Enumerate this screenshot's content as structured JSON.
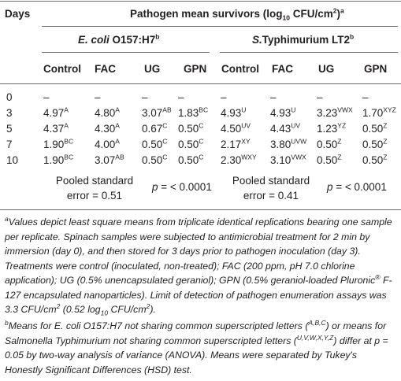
{
  "header": {
    "days": "Days",
    "title": [
      "Pathogen mean survivors (log",
      "10",
      " CFU/cm",
      "2",
      ")",
      "a"
    ],
    "group1": [
      "E. coli",
      " O157:H7",
      "b"
    ],
    "group2": [
      "S.",
      "Typhimurium LT2",
      "b"
    ],
    "columns": [
      "Control",
      "FAC",
      "UG",
      "GPN",
      "Control",
      "FAC",
      "UG",
      "GPN"
    ]
  },
  "table": {
    "rows": [
      {
        "day": "0",
        "cells": [
          [
            "–"
          ],
          [
            "–"
          ],
          [
            "–"
          ],
          [
            "–"
          ],
          [
            "–"
          ],
          [
            "–"
          ],
          [
            "–"
          ],
          [
            "–"
          ]
        ]
      },
      {
        "day": "3",
        "cells": [
          [
            "4.97",
            "A"
          ],
          [
            "4.80",
            "A"
          ],
          [
            "3.07",
            "AB"
          ],
          [
            "1.83",
            "BC"
          ],
          [
            "4.93",
            "U"
          ],
          [
            "4.93",
            "U"
          ],
          [
            "3.23",
            "VWX"
          ],
          [
            "1.70",
            "XYZ"
          ]
        ]
      },
      {
        "day": "5",
        "cells": [
          [
            "4.37",
            "A"
          ],
          [
            "4.30",
            "A"
          ],
          [
            "0.67",
            "C"
          ],
          [
            "0.50",
            "C"
          ],
          [
            "4.50",
            "UV"
          ],
          [
            "4.43",
            "UV"
          ],
          [
            "1.23",
            "YZ"
          ],
          [
            "0.50",
            "Z"
          ]
        ]
      },
      {
        "day": "7",
        "cells": [
          [
            "1.90",
            "BC"
          ],
          [
            "4.00",
            "A"
          ],
          [
            "0.50",
            "C"
          ],
          [
            "0.50",
            "C"
          ],
          [
            "2.17",
            "XY"
          ],
          [
            "3.80",
            "UVW"
          ],
          [
            "0.50",
            "Z"
          ],
          [
            "0.50",
            "Z"
          ]
        ]
      },
      {
        "day": "10",
        "cells": [
          [
            "1.90",
            "BC"
          ],
          [
            "3.07",
            "AB"
          ],
          [
            "0.50",
            "C"
          ],
          [
            "0.50",
            "C"
          ],
          [
            "2.30",
            "WXY"
          ],
          [
            "3.10",
            "VWX"
          ],
          [
            "0.50",
            "Z"
          ],
          [
            "0.50",
            "Z"
          ]
        ]
      }
    ],
    "stats": {
      "se1": [
        "Pooled standard",
        "error = 0.51"
      ],
      "p1": [
        "p",
        " = < 0.0001"
      ],
      "se2": [
        "Pooled standard",
        "error = 0.41"
      ],
      "p2": [
        "p",
        " = < 0.0001"
      ]
    }
  },
  "footnotes": {
    "a": [
      "a",
      "Values depict least square means from triplicate identical replications bearing one sample per replicate. Spinach samples were subjected to antimicrobial treatment for 2 min by immersion (day 0), and then stored for 3 days prior to pathogen inoculation (day 3). Treatments were control (inoculated, non-treated); FAC (200 ppm, pH 7.0 chlorine application); UG (0.5% unencapsulated geraniol); GPN (0.5% geraniol-loaded Pluronic",
      "®",
      " F-127 encapsulated nanoparticles). Limit of detection of pathogen enumeration assays was 3.3 CFU/cm",
      "2",
      " (0.52 log",
      "10",
      " CFU/cm",
      "2",
      ")."
    ],
    "b": [
      "b",
      "Means for E. coli O157:H7 not sharing common superscripted letters (",
      "A,B,C",
      ") or means for Salmonella Typhimurium not sharing common superscripted letters (",
      "U,V,W,X,Y,Z",
      ") differ at p = 0.05 by two-way analysis of variance (ANOVA). Means were separated by Tukey's Honestly Significant Differences (HSD) test."
    ]
  }
}
